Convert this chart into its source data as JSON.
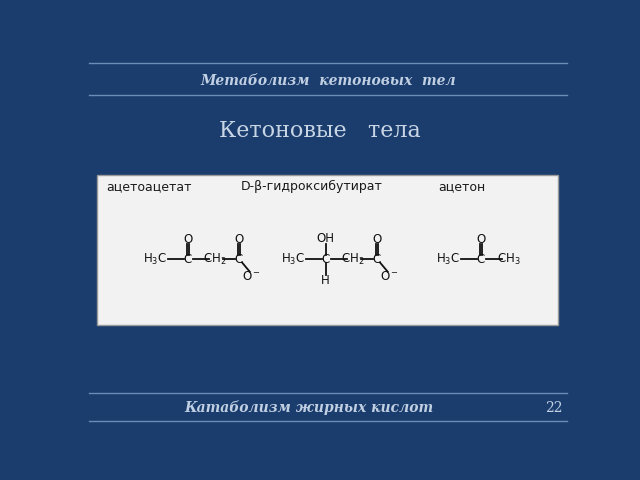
{
  "bg_color": "#1b3d6e",
  "header_text": "Метаболизм  кетоновых  тел",
  "footer_text": "Катаболизм жирных кислот",
  "page_number": "22",
  "title": "Кетоновые   тела",
  "title_color": "#c8d5e5",
  "header_color": "#c0cfe2",
  "footer_color": "#c0cfe2",
  "line_color": "#6a8db8",
  "box_bg": "#f2f2f2",
  "box_edge": "#999999",
  "label1": "ацетоацетат",
  "label2": "D-β-гидроксибутират",
  "label3": "ацетон"
}
